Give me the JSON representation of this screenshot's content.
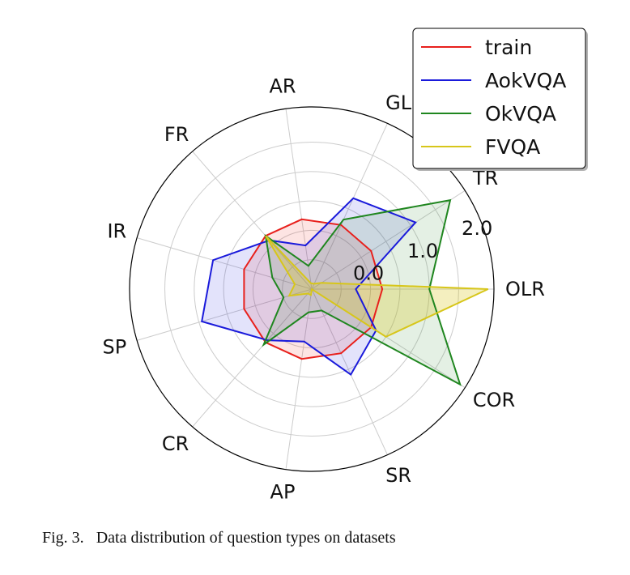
{
  "figure": {
    "caption_label": "Fig. 3.",
    "caption_text": "Data distribution of question types on datasets"
  },
  "chart_data": {
    "type": "radar",
    "categories": [
      "OLR",
      "TR",
      "GL",
      "AR",
      "FR",
      "IR",
      "SP",
      "CR",
      "AP",
      "SR",
      "COR"
    ],
    "radial_tick_labels": [
      "0.0",
      "1.0",
      "2.0"
    ],
    "rlim": [
      -0.7,
      2.4
    ],
    "grid": true,
    "legend_position": "top-right",
    "series": [
      {
        "name": "train",
        "color": "#e8201c",
        "fill": "rgba(238,32,28,0.12)",
        "values": [
          0.5,
          0.5,
          0.5,
          0.5,
          0.5,
          0.5,
          0.5,
          0.5,
          0.5,
          0.5,
          0.5
        ]
      },
      {
        "name": "AokVQA",
        "color": "#1a1adb",
        "fill": "rgba(26,26,219,0.12)",
        "values": [
          0.05,
          1.4,
          1.0,
          0.05,
          0.4,
          1.05,
          1.25,
          0.45,
          0.2,
          0.9,
          0.6
        ]
      },
      {
        "name": "OkVQA",
        "color": "#1f861f",
        "fill": "rgba(31,134,31,0.12)",
        "values": [
          1.3,
          2.1,
          0.6,
          -0.3,
          0.5,
          0.0,
          -0.2,
          0.55,
          -0.3,
          -0.3,
          2.3
        ]
      },
      {
        "name": "FVQA",
        "color": "#d7c61a",
        "fill": "rgba(215,198,26,0.28)",
        "values": [
          2.3,
          -0.5,
          -0.6,
          -0.6,
          0.5,
          -0.4,
          -0.3,
          -0.6,
          -0.6,
          -0.7,
          0.8
        ]
      }
    ]
  }
}
